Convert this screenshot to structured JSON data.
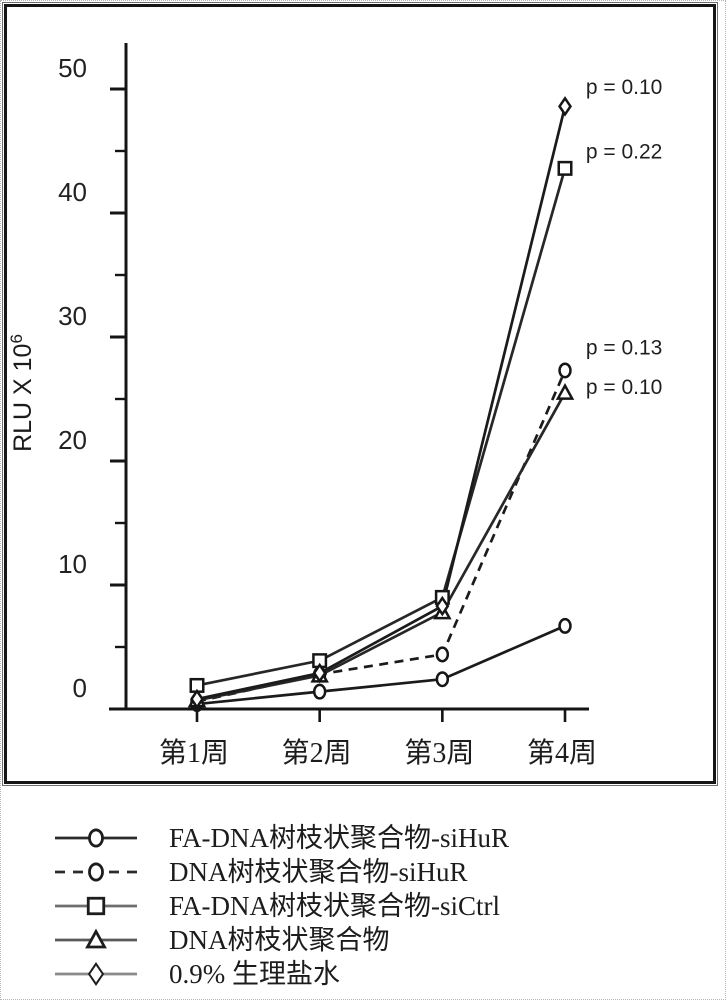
{
  "chart_data": {
    "type": "line",
    "title": "",
    "xlabel": "",
    "ylabel": "RLU X 10",
    "ylabel_exponent": "6",
    "x_categories": [
      "第1周",
      "第2周",
      "第3周",
      "第4周"
    ],
    "y_major_ticks": [
      0,
      10,
      20,
      30,
      40,
      50
    ],
    "y_minor_ticks": [
      5,
      15,
      25,
      35,
      45
    ],
    "ylim": [
      0,
      52
    ],
    "grid": false,
    "legend_position": "below-chart",
    "series": [
      {
        "name": "FA-DNA树枝状聚合物-siHuR",
        "marker": "circle",
        "line": "solid",
        "color": "#1b1b1b",
        "values": [
          0.4,
          1.4,
          2.4,
          6.7
        ]
      },
      {
        "name": "DNA树枝状聚合物-siHuR",
        "marker": "circle",
        "line": "dashed",
        "color": "#1b1b1b",
        "values": [
          0.6,
          2.8,
          4.4,
          27.3
        ]
      },
      {
        "name": "FA-DNA树枝状聚合物-siCtrl",
        "marker": "square",
        "line": "solid",
        "color": "#272727",
        "values": [
          1.9,
          3.9,
          9.0,
          43.6
        ]
      },
      {
        "name": "DNA树枝状聚合物",
        "marker": "triangle",
        "line": "solid",
        "color": "#272727",
        "values": [
          0.7,
          2.7,
          7.8,
          25.5
        ]
      },
      {
        "name": "0.9% 生理盐水",
        "marker": "diamond",
        "line": "solid",
        "color": "#1b1b1b",
        "values": [
          0.8,
          2.9,
          8.3,
          48.6
        ]
      }
    ],
    "annotations": [
      {
        "text": "p = 0.10",
        "x": 4.17,
        "y": 49.6
      },
      {
        "text": "p = 0.22",
        "x": 4.17,
        "y": 44.4
      },
      {
        "text": "p = 0.13",
        "x": 4.17,
        "y": 28.6
      },
      {
        "text": "p = 0.10",
        "x": 4.17,
        "y": 25.4
      }
    ]
  },
  "legend": {
    "items": [
      {
        "label": "FA-DNA树枝状聚合物-siHuR",
        "marker": "circle",
        "line": "solid",
        "color": "#2b2b2b"
      },
      {
        "label": "DNA树枝状聚合物-siHuR",
        "marker": "circle",
        "line": "dashed",
        "color": "#2b2b2b"
      },
      {
        "label": "FA-DNA树枝状聚合物-siCtrl",
        "marker": "square",
        "line": "solid",
        "color": "#6e6e6e"
      },
      {
        "label": "DNA树枝状聚合物",
        "marker": "triangle",
        "line": "solid",
        "color": "#5a5a5a"
      },
      {
        "label": "0.9% 生理盐水",
        "marker": "diamond",
        "line": "solid",
        "color": "#8a8a8a"
      }
    ]
  }
}
